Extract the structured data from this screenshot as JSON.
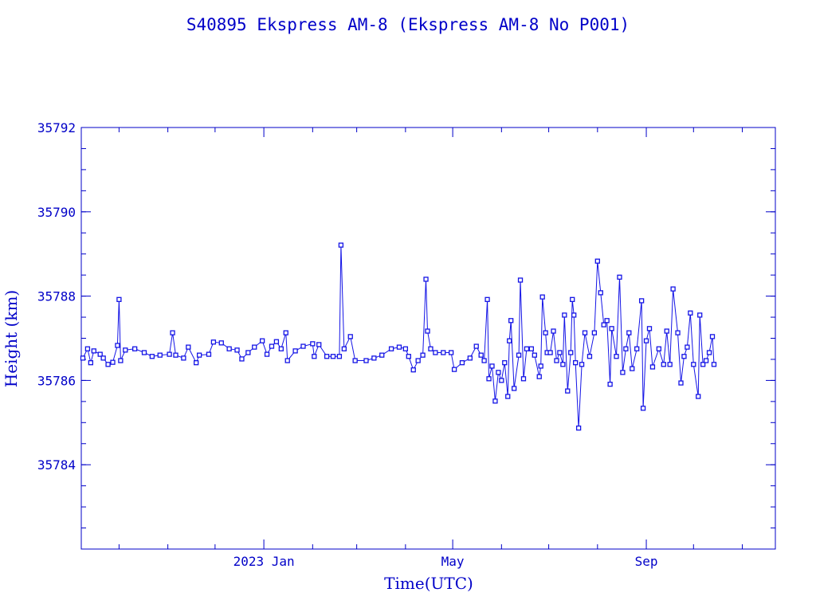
{
  "chart_data": {
    "type": "line",
    "title": "S40895 Ekspress AM-8  (Ekspress AM-8 No P001)",
    "xlabel": "Time(UTC)",
    "ylabel": "Height (km)",
    "x_units": "days since 2023-01-01",
    "xlim": [
      -116,
      325
    ],
    "ylim": [
      35782,
      35792
    ],
    "x_major_ticks": [
      {
        "value": 0,
        "label": "2023 Jan"
      },
      {
        "value": 120,
        "label": "May"
      },
      {
        "value": 243,
        "label": "Sep"
      }
    ],
    "x_minor_ticks": [
      -92,
      -61,
      -31,
      31,
      59,
      90,
      151,
      181,
      212,
      273,
      304
    ],
    "y_ticks": [
      {
        "value": 35784,
        "label": "35784"
      },
      {
        "value": 35786,
        "label": "35786"
      },
      {
        "value": 35788,
        "label": "35788"
      },
      {
        "value": 35790,
        "label": "35790"
      },
      {
        "value": 35792,
        "label": "35792"
      }
    ],
    "y_minor_step": 0.5,
    "grid": false,
    "colors": {
      "series": "#1414e6",
      "axis": "#0000c8"
    },
    "series": [
      {
        "name": "Height",
        "x": [
          -115,
          -112,
          -110,
          -108,
          -104,
          -102,
          -99,
          -96,
          -93,
          -92,
          -91,
          -88,
          -82,
          -76,
          -71,
          -66,
          -60,
          -58,
          -56,
          -51,
          -48,
          -43,
          -41,
          -35,
          -32,
          -27,
          -22,
          -17,
          -14,
          -10,
          -6,
          -1,
          2,
          5,
          8,
          11,
          14,
          15,
          20,
          25,
          31,
          32,
          35,
          40,
          44,
          48,
          49,
          51,
          55,
          58,
          65,
          70,
          75,
          81,
          86,
          90,
          92,
          95,
          98,
          101,
          103,
          104,
          106,
          109,
          114,
          119,
          121,
          126,
          131,
          135,
          138,
          140,
          142,
          143,
          145,
          147,
          149,
          151,
          153,
          155,
          156,
          157,
          159,
          162,
          163,
          165,
          167,
          170,
          172,
          175,
          176,
          177,
          179,
          180,
          182,
          184,
          186,
          188,
          190,
          191,
          193,
          195,
          196,
          197,
          198,
          200,
          202,
          204,
          207,
          210,
          212,
          214,
          216,
          218,
          220,
          221,
          224,
          226,
          228,
          230,
          232,
          234,
          237,
          240,
          241,
          243,
          245,
          247,
          251,
          254,
          256,
          258,
          260,
          263,
          265,
          267,
          269,
          271,
          273,
          276,
          277,
          279,
          281,
          283,
          285,
          286
        ],
        "y": [
          35786.53,
          35786.75,
          35786.42,
          35786.7,
          35786.62,
          35786.53,
          35786.38,
          35786.43,
          35786.83,
          35787.92,
          35786.47,
          35786.72,
          35786.75,
          35786.66,
          35786.57,
          35786.6,
          35786.62,
          35787.13,
          35786.6,
          35786.53,
          35786.79,
          35786.42,
          35786.6,
          35786.62,
          35786.91,
          35786.89,
          35786.75,
          35786.72,
          35786.51,
          35786.66,
          35786.79,
          35786.94,
          35786.62,
          35786.81,
          35786.92,
          35786.75,
          35787.13,
          35786.47,
          35786.7,
          35786.81,
          35786.87,
          35786.57,
          35786.85,
          35786.57,
          35786.57,
          35786.57,
          35789.21,
          35786.75,
          35787.04,
          35786.47,
          35786.47,
          35786.53,
          35786.6,
          35786.75,
          35786.79,
          35786.75,
          35786.57,
          35786.25,
          35786.47,
          35786.6,
          35788.4,
          35787.17,
          35786.75,
          35786.66,
          35786.66,
          35786.66,
          35786.26,
          35786.42,
          35786.53,
          35786.81,
          35786.6,
          35786.47,
          35787.92,
          35786.04,
          35786.34,
          35785.51,
          35786.19,
          35786.0,
          35786.42,
          35785.62,
          35786.94,
          35787.42,
          35785.81,
          35786.6,
          35788.38,
          35786.04,
          35786.75,
          35786.75,
          35786.6,
          35786.09,
          35786.34,
          35787.98,
          35787.13,
          35786.66,
          35786.66,
          35787.17,
          35786.47,
          35786.66,
          35786.38,
          35787.55,
          35785.75,
          35786.66,
          35787.92,
          35787.55,
          35786.42,
          35784.87,
          35786.38,
          35787.13,
          35786.57,
          35787.13,
          35788.83,
          35788.08,
          35787.32,
          35787.42,
          35785.91,
          35787.23,
          35786.57,
          35788.45,
          35786.19,
          35786.75,
          35787.13,
          35786.28,
          35786.75,
          35787.89,
          35785.34,
          35786.94,
          35787.23,
          35786.32,
          35786.75,
          35786.38,
          35787.17,
          35786.38,
          35788.17,
          35787.13,
          35785.94,
          35786.57,
          35786.79,
          35787.6,
          35786.38,
          35785.62,
          35787.55,
          35786.38,
          35786.47,
          35786.66,
          35787.04,
          35786.38
        ]
      }
    ]
  }
}
